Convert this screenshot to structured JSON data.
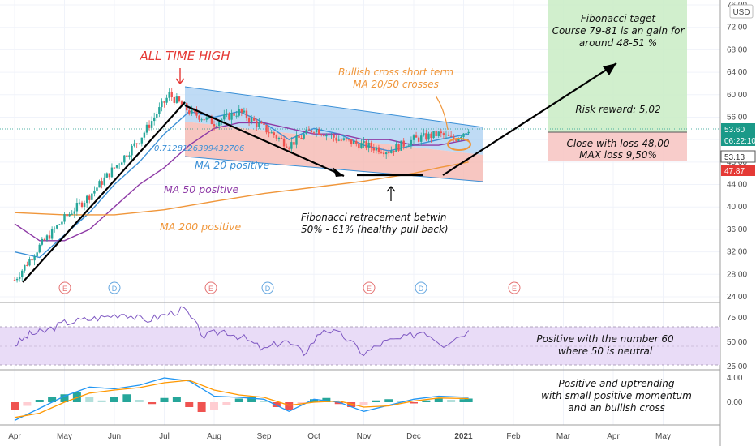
{
  "chart_data": [
    {
      "type": "candlestick",
      "title": "",
      "currency": "USD",
      "ylim": [
        24,
        76
      ],
      "y_ticks": [
        "24.00",
        "28.00",
        "32.00",
        "36.00",
        "40.00",
        "44.00",
        "48.00",
        "52.00",
        "56.00",
        "60.00",
        "64.00",
        "68.00",
        "72.00",
        "76.00"
      ],
      "x_ticks": [
        "Apr",
        "May",
        "Jun",
        "Jul",
        "Aug",
        "Sep",
        "Oct",
        "Nov",
        "Dec",
        "2021",
        "Feb",
        "Mar",
        "Apr",
        "May"
      ],
      "price_path": {
        "months": [
          0,
          0.5,
          1,
          1.5,
          2,
          2.5,
          3.1,
          3.5,
          4,
          4.5,
          5,
          5.5,
          6,
          6.5,
          7,
          7.5,
          8,
          8.5,
          8.8,
          9.1
        ],
        "close": [
          27,
          33,
          38,
          42,
          47,
          52,
          60,
          57,
          55,
          57,
          54,
          51,
          54,
          52,
          51,
          50,
          52,
          53,
          52,
          54
        ]
      },
      "series": [
        {
          "name": "MA 20 positive",
          "color": "#3a8fd6",
          "x": [
            0,
            0.5,
            1,
            1.5,
            2,
            2.5,
            3,
            3.5,
            4,
            4.5,
            5,
            5.5,
            6,
            6.5,
            7,
            7.5,
            8,
            8.5,
            9.1
          ],
          "values": [
            32,
            31,
            35,
            39,
            44,
            48,
            53,
            57,
            56,
            57,
            55,
            52,
            54,
            53,
            51,
            50,
            51,
            52,
            53
          ]
        },
        {
          "name": "MA 50 positive",
          "color": "#8e3aa6",
          "x": [
            0,
            0.5,
            1,
            1.5,
            2,
            2.5,
            3,
            3.5,
            4,
            4.5,
            5,
            5.5,
            6,
            6.5,
            7,
            7.5,
            8,
            8.5,
            9.1
          ],
          "values": [
            37,
            34,
            34,
            36,
            40,
            44,
            47,
            51,
            54,
            55,
            55,
            54,
            53,
            53,
            52,
            52,
            51,
            51,
            52
          ]
        },
        {
          "name": "MA 200 positive",
          "color": "#f0963a",
          "x": [
            0,
            1,
            2,
            3,
            4,
            5,
            6,
            7,
            8,
            8.5,
            9.1
          ],
          "values": [
            39,
            38.6,
            38.6,
            39.5,
            41,
            42.4,
            43.5,
            44.6,
            46,
            47,
            48
          ]
        }
      ],
      "price_labels": [
        {
          "label": "53.60",
          "color": "#1a9988"
        },
        {
          "label": "06:22:10",
          "color": "#1a9988"
        },
        {
          "label": "53.13",
          "color": "#555555"
        },
        {
          "label": "47.87",
          "color": "#e53935"
        }
      ],
      "event_markers": [
        "E",
        "D",
        "E",
        "D",
        "E",
        "D",
        "E"
      ],
      "annotations": {
        "ath": "ALL TIME HIGH",
        "bull": [
          "Bullish cross short term",
          "MA 20/50 crosses"
        ],
        "fib": [
          "Fibonacci retracement betwin",
          "50% - 61%  (healthy pull back)"
        ],
        "target": [
          "Fibonacci taget",
          "Course 79-81 is an gain for",
          "around 48-51 %"
        ],
        "rr": "Risk reward: 5,02",
        "loss": [
          "Close with loss 48,00",
          "MAX loss 9,50%"
        ],
        "fib_level": "0.7128126399432706"
      }
    },
    {
      "type": "line",
      "title": "",
      "ylim": [
        25,
        85
      ],
      "y_ticks": [
        "25.00",
        "50.00",
        "75.00"
      ],
      "series": [
        {
          "name": "",
          "x": [
            0,
            0.3,
            0.6,
            1,
            1.4,
            1.8,
            2.2,
            2.6,
            3,
            3.4,
            3.8,
            4.2,
            4.6,
            5,
            5.4,
            5.8,
            6.2,
            6.6,
            7,
            7.4,
            7.8,
            8.2,
            8.6,
            9.1
          ],
          "values": [
            47,
            58,
            61,
            70,
            73,
            76,
            80,
            72,
            78,
            84,
            56,
            62,
            54,
            42,
            52,
            39,
            64,
            56,
            38,
            50,
            54,
            62,
            48,
            62
          ]
        }
      ],
      "annotation": [
        "Positive with the number 60",
        "where 50 is neutral"
      ]
    },
    {
      "type": "histogram",
      "title": "",
      "y_ticks": [
        "4.00",
        "0.00"
      ],
      "histogram": {
        "x": [
          0,
          0.25,
          0.5,
          0.75,
          1,
          1.25,
          1.5,
          1.75,
          2,
          2.25,
          2.5,
          2.75,
          3,
          3.25,
          3.5,
          3.75,
          4,
          4.25,
          4.5,
          4.75,
          5,
          5.25,
          5.5,
          5.75,
          6,
          6.25,
          6.5,
          6.75,
          7,
          7.25,
          7.5,
          7.75,
          8,
          8.25,
          8.5,
          8.75,
          9,
          9.1
        ],
        "values": [
          -1.2,
          -0.6,
          0.4,
          0.9,
          1.3,
          1.6,
          0.8,
          0.3,
          0.9,
          1.3,
          0.4,
          -0.3,
          0.7,
          0.9,
          -0.8,
          -1.6,
          -1.2,
          -0.5,
          0.6,
          0.9,
          0.2,
          -0.8,
          -1.3,
          -0.4,
          0.5,
          0.7,
          -0.3,
          -0.8,
          -0.4,
          0.3,
          0.5,
          0.2,
          -0.2,
          0.3,
          0.6,
          0.4,
          0.5,
          0.6
        ]
      },
      "macd": {
        "x": [
          0,
          0.5,
          1,
          1.5,
          2,
          2.5,
          3,
          3.5,
          4,
          4.5,
          5,
          5.5,
          6,
          6.5,
          7,
          7.5,
          8,
          8.5,
          9.1
        ],
        "values": [
          -3,
          -1,
          1,
          2.5,
          2.2,
          2.8,
          4,
          3.5,
          1,
          0.8,
          0.5,
          -1.5,
          0.5,
          0,
          -1.5,
          -0.5,
          0.5,
          1,
          0.8
        ]
      },
      "signal": {
        "x": [
          0,
          0.5,
          1,
          1.5,
          2,
          2.5,
          3,
          3.5,
          4,
          4.5,
          5,
          5.5,
          6,
          6.5,
          7,
          7.5,
          8,
          8.5,
          9.1
        ],
        "values": [
          -2.5,
          -1.8,
          0,
          1.5,
          2,
          2.4,
          3.2,
          3.6,
          2,
          1.2,
          0.8,
          -0.5,
          0,
          0.2,
          -0.8,
          -0.6,
          0.2,
          0.7,
          0.6
        ]
      },
      "annotation": [
        "Positive and uptrending",
        "with small positive momentum",
        "and an bullish cross"
      ]
    }
  ]
}
